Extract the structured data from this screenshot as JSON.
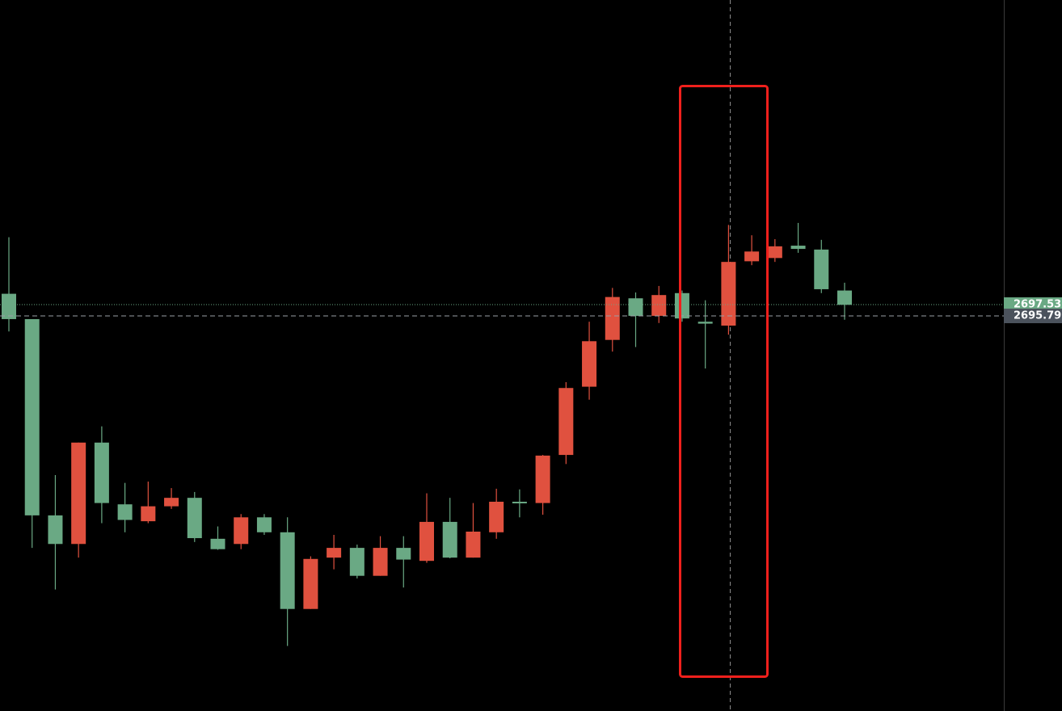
{
  "chart_data": {
    "type": "candlestick",
    "up_color": "#e0513f",
    "down_color": "#6aa984",
    "ylim": [
      2635.0,
      2744.4
    ],
    "open": [
      2699.2,
      2695.3,
      2665.1,
      2660.7,
      2676.3,
      2666.8,
      2664.2,
      2666.5,
      2667.8,
      2661.5,
      2660.7,
      2664.8,
      2662.5,
      2650.7,
      2658.6,
      2660.1,
      2655.8,
      2660.1,
      2658.1,
      2664.1,
      2658.6,
      2662.5,
      2667.2,
      2667.0,
      2674.4,
      2684.9,
      2692.1,
      2698.5,
      2695.8,
      2699.3,
      2694.9,
      2694.3,
      2704.2,
      2704.7,
      2706.6,
      2706.0,
      2699.7
    ],
    "high": [
      2707.9,
      2695.3,
      2671.3,
      2676.3,
      2678.8,
      2670.1,
      2670.3,
      2669.3,
      2668.7,
      2663.4,
      2665.3,
      2665.3,
      2664.8,
      2658.8,
      2662.1,
      2660.6,
      2661.9,
      2661.9,
      2668.5,
      2667.8,
      2667.0,
      2669.2,
      2669.1,
      2674.4,
      2685.6,
      2694.9,
      2700.1,
      2699.4,
      2700.4,
      2699.7,
      2698.2,
      2709.8,
      2708.2,
      2707.6,
      2710.1,
      2707.5,
      2700.9
    ],
    "low": [
      2693.4,
      2660.1,
      2653.7,
      2658.6,
      2663.9,
      2662.5,
      2663.9,
      2666.1,
      2661.0,
      2659.8,
      2659.9,
      2662.1,
      2645.0,
      2650.7,
      2656.8,
      2655.4,
      2655.8,
      2654.0,
      2657.8,
      2658.5,
      2658.6,
      2661.5,
      2664.8,
      2665.2,
      2673.0,
      2682.9,
      2690.3,
      2691.0,
      2694.7,
      2694.9,
      2687.7,
      2692.9,
      2703.6,
      2704.1,
      2705.5,
      2699.3,
      2695.2
    ],
    "close": [
      2695.3,
      2665.1,
      2660.7,
      2676.3,
      2667.0,
      2664.4,
      2666.5,
      2667.8,
      2661.6,
      2659.9,
      2664.8,
      2662.5,
      2650.7,
      2658.4,
      2660.1,
      2655.8,
      2660.1,
      2658.3,
      2664.1,
      2658.6,
      2662.6,
      2667.2,
      2667.0,
      2674.3,
      2684.7,
      2691.9,
      2698.7,
      2695.8,
      2699.0,
      2695.4,
      2694.6,
      2704.1,
      2705.7,
      2706.5,
      2706.1,
      2699.9,
      2697.5
    ],
    "last_price": 2697.53,
    "crosshair_price": 2695.79
  }
}
